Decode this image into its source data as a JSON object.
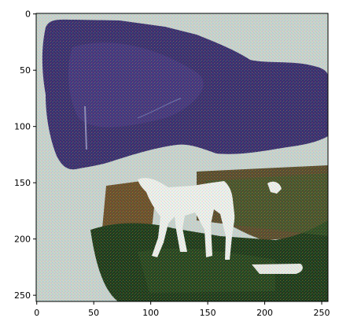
{
  "figure": {
    "kind": "image-plot",
    "image": {
      "subject": "pixelated image with dark purple mass on top, a white horse-like animal in the middle, and dark green ground below",
      "colors": {
        "background_light": "#c9d3d0",
        "purple_dark": "#3a2e6e",
        "purple_mid": "#4b3b86",
        "green_dark": "#1f3a1a",
        "green_mid": "#3d5a2a",
        "brown": "#5a4b2c",
        "white": "#eef0ee"
      }
    },
    "x_axis": {
      "range": [
        0,
        255
      ],
      "ticks": [
        0,
        50,
        100,
        150,
        200,
        250
      ],
      "labels": [
        "0",
        "50",
        "100",
        "150",
        "200",
        "250"
      ]
    },
    "y_axis": {
      "range": [
        0,
        255
      ],
      "ticks": [
        0,
        50,
        100,
        150,
        200,
        250
      ],
      "labels": [
        "0",
        "50",
        "100",
        "150",
        "200",
        "250"
      ]
    }
  }
}
